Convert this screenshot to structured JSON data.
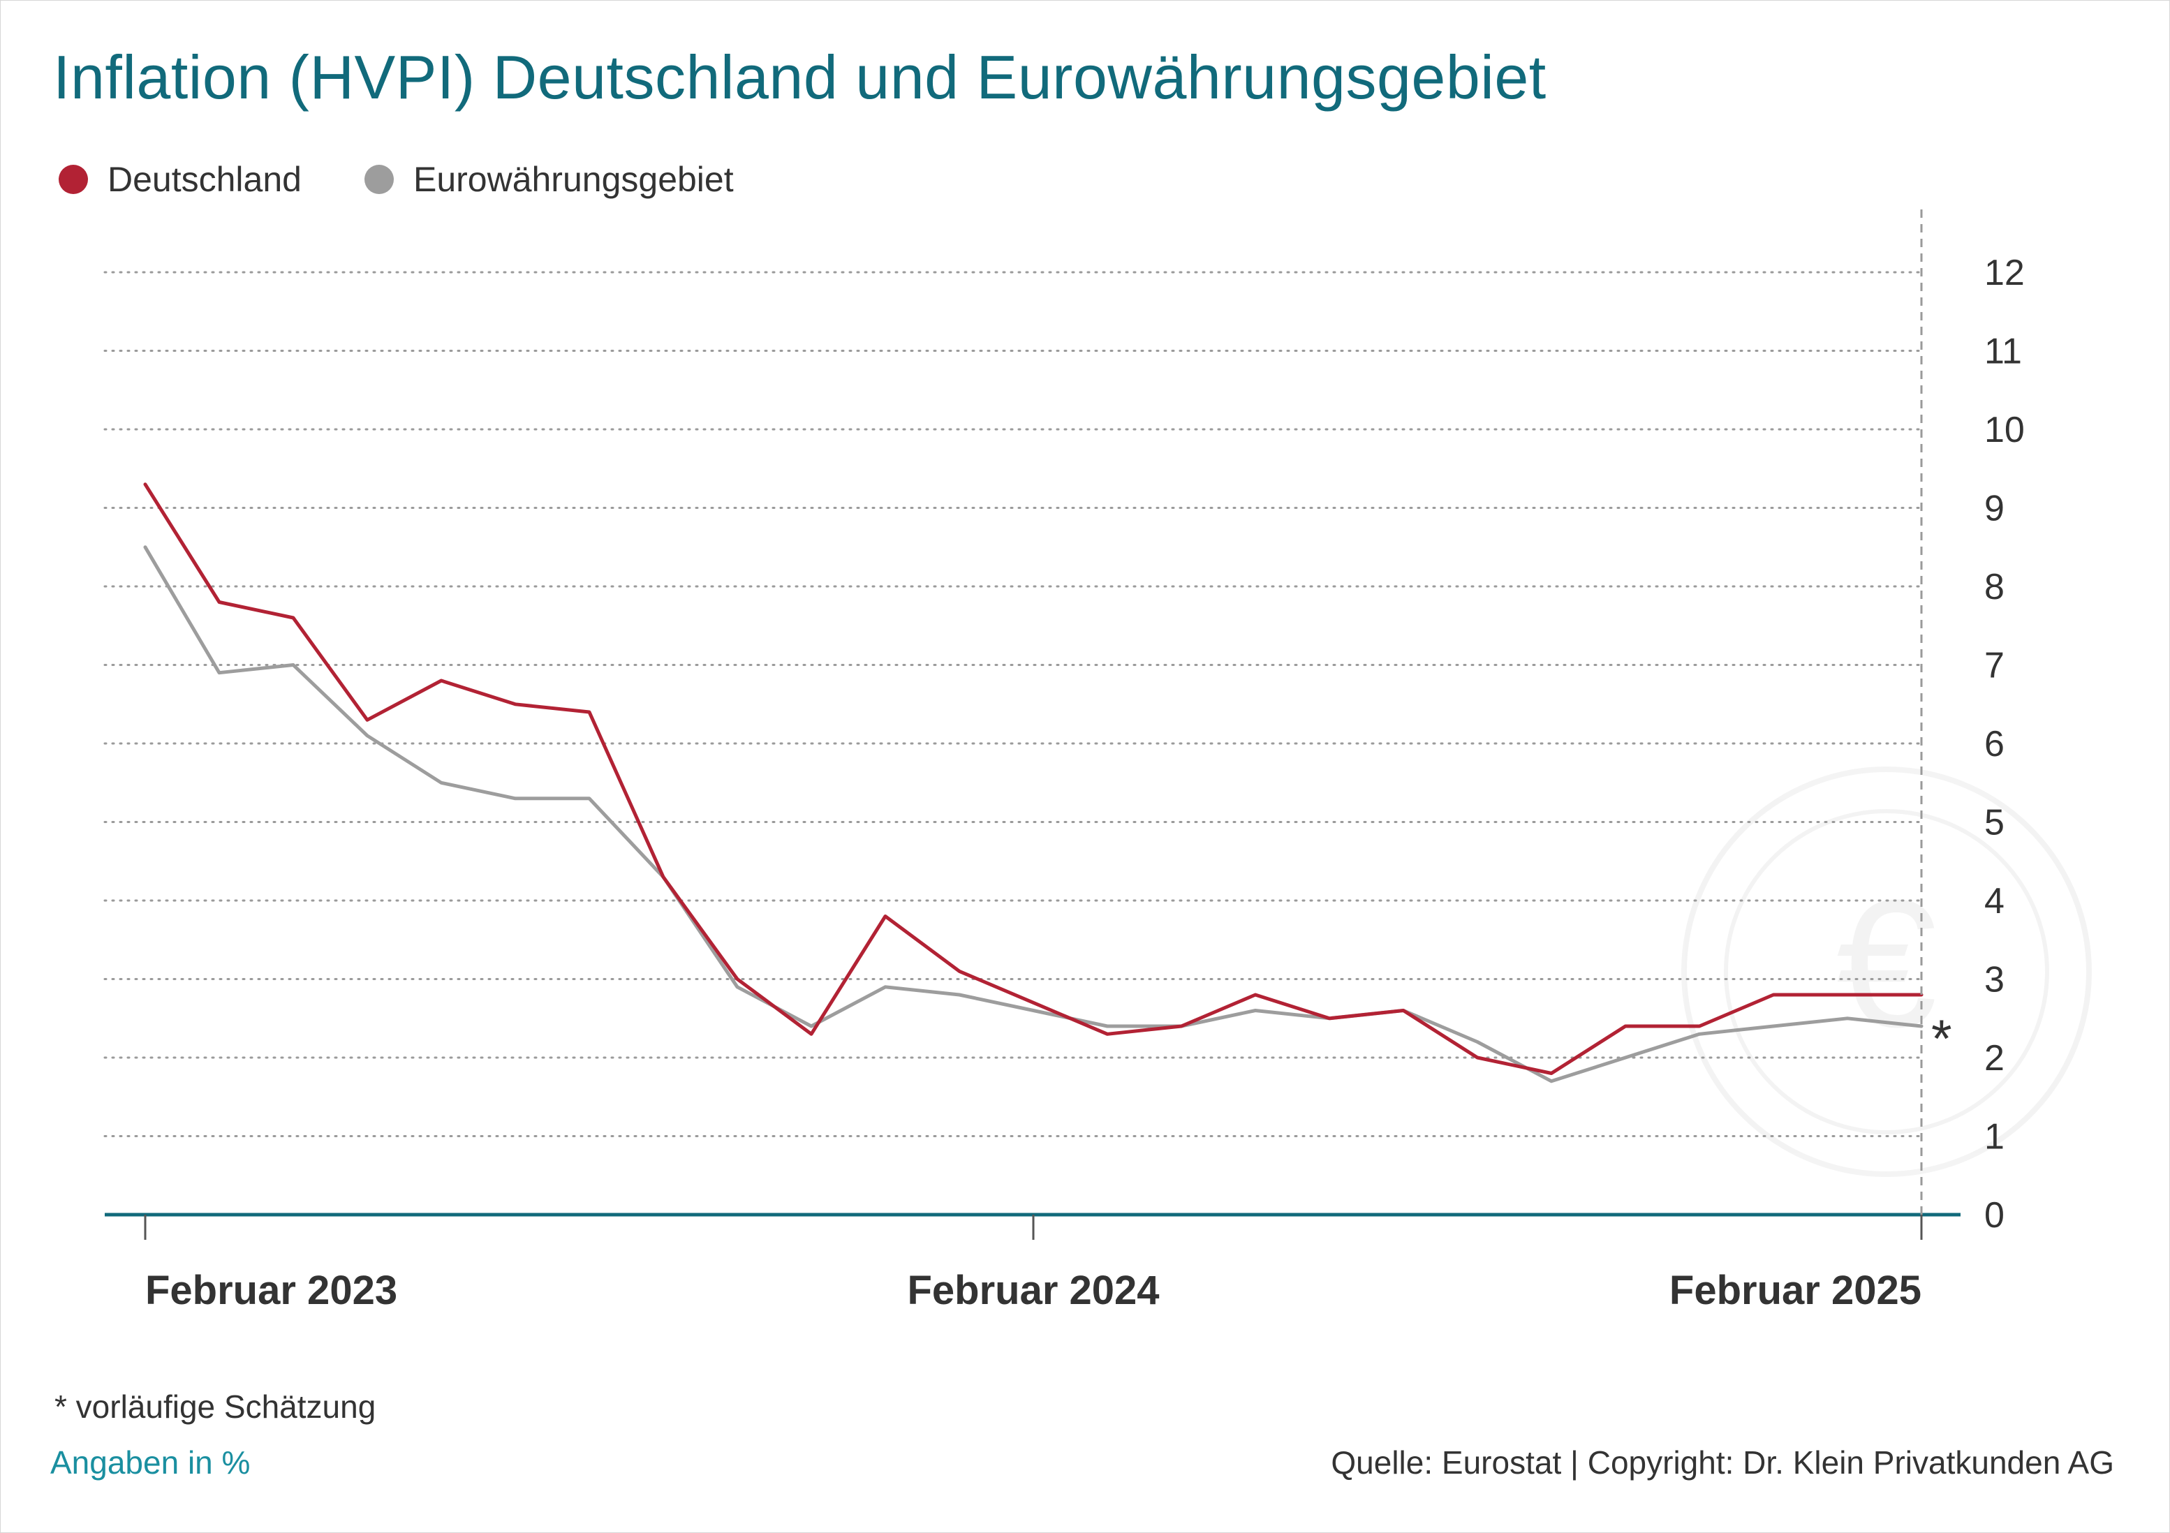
{
  "title": "Inflation (HVPI) Deutschland und Eurowährungsgebiet",
  "legend": [
    {
      "label": "Deutschland",
      "color": "#b22234"
    },
    {
      "label": "Eurowährungsgebiet",
      "color": "#9d9d9d"
    }
  ],
  "footnote": "* vorläufige Schätzung",
  "unit_note": "Angaben in %",
  "source": "Quelle: Eurostat | Copyright: Dr. Klein Privatkunden AG",
  "chart_data": {
    "type": "line",
    "x": [
      "2023-02",
      "2023-03",
      "2023-04",
      "2023-05",
      "2023-06",
      "2023-07",
      "2023-08",
      "2023-09",
      "2023-10",
      "2023-11",
      "2023-12",
      "2024-01",
      "2024-02",
      "2024-03",
      "2024-04",
      "2024-05",
      "2024-06",
      "2024-07",
      "2024-08",
      "2024-09",
      "2024-10",
      "2024-11",
      "2024-12",
      "2025-01",
      "2025-02"
    ],
    "series": [
      {
        "name": "Deutschland",
        "color": "#b22234",
        "values": [
          9.3,
          7.8,
          7.6,
          6.3,
          6.8,
          6.5,
          6.4,
          4.3,
          3.0,
          2.3,
          3.8,
          3.1,
          2.7,
          2.3,
          2.4,
          2.8,
          2.5,
          2.6,
          2.0,
          1.8,
          2.4,
          2.4,
          2.8,
          2.8,
          2.8
        ]
      },
      {
        "name": "Eurowährungsgebiet",
        "color": "#9d9d9d",
        "values": [
          8.5,
          6.9,
          7.0,
          6.1,
          5.5,
          5.3,
          5.3,
          4.3,
          2.9,
          2.4,
          2.9,
          2.8,
          2.6,
          2.4,
          2.4,
          2.6,
          2.5,
          2.6,
          2.2,
          1.7,
          2.0,
          2.3,
          2.4,
          2.5,
          2.4
        ]
      }
    ],
    "x_tick_labels": [
      {
        "label": "Februar 2023",
        "at": "2023-02"
      },
      {
        "label": "Februar 2024",
        "at": "2024-02"
      },
      {
        "label": "Februar 2025",
        "at": "2025-02"
      }
    ],
    "ylim": [
      0,
      12
    ],
    "y_ticks": [
      0,
      1,
      2,
      3,
      4,
      5,
      6,
      7,
      8,
      9,
      10,
      11,
      12
    ],
    "y_axis_side": "right",
    "grid": "horizontal dotted",
    "annotations": [
      {
        "text": "*",
        "at": "2025-02"
      }
    ]
  }
}
